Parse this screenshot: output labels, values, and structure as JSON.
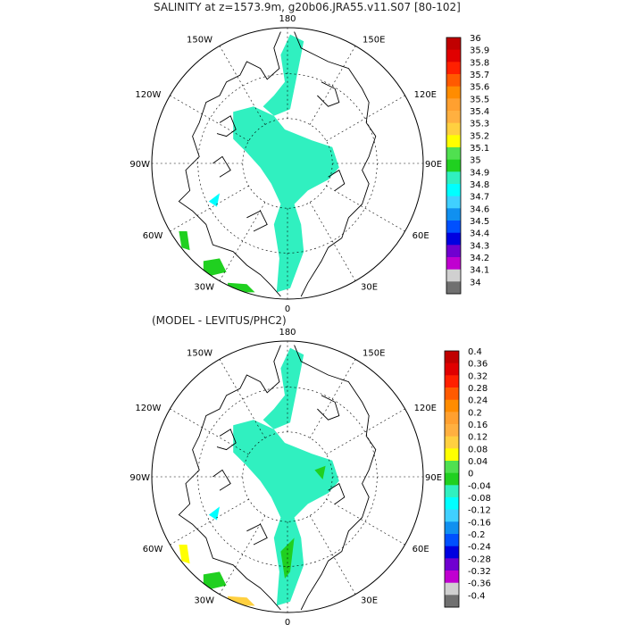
{
  "top_panel": {
    "title": "SALINITY at z=1573.9m, g20b06.JRA55.v11.S07 [80-102]",
    "lon_labels": {
      "l180": "180",
      "l150w": "150W",
      "l150e": "150E",
      "l120w": "120W",
      "l120e": "120E",
      "l90w": "90W",
      "l90e": "90E",
      "l60w": "60W",
      "l60e": "60E",
      "l30w": "30W",
      "l30e": "30E",
      "l0": "0"
    },
    "colorbar": {
      "labels": [
        "36",
        "35.9",
        "35.8",
        "35.7",
        "35.6",
        "35.5",
        "35.4",
        "35.3",
        "35.2",
        "35.1",
        "35",
        "34.9",
        "34.8",
        "34.7",
        "34.6",
        "34.5",
        "34.4",
        "34.3",
        "34.2",
        "34.1",
        "34"
      ],
      "colors": [
        "#c00000",
        "#e00000",
        "#ff2000",
        "#ff5a00",
        "#ff8c00",
        "#ffa030",
        "#ffb040",
        "#ffd040",
        "#ffff00",
        "#50e050",
        "#20d020",
        "#30f0c0",
        "#00ffff",
        "#40d0ff",
        "#1090f0",
        "#0050ff",
        "#0000e0",
        "#7000d0",
        "#c000d0",
        "#d0d0d0",
        "#707070"
      ]
    }
  },
  "bottom_panel": {
    "title": "(MODEL - LEVITUS/PHC2)",
    "lon_labels": {
      "l180": "180",
      "l150w": "150W",
      "l150e": "150E",
      "l120w": "120W",
      "l120e": "120E",
      "l90w": "90W",
      "l90e": "90E",
      "l60w": "60W",
      "l60e": "60E",
      "l30w": "30W",
      "l30e": "30E",
      "l0": "0"
    },
    "colorbar": {
      "labels": [
        "0.4",
        "0.36",
        "0.32",
        "0.28",
        "0.24",
        "0.2",
        "0.16",
        "0.12",
        "0.08",
        "0.04",
        "0",
        "-0.04",
        "-0.08",
        "-0.12",
        "-0.16",
        "-0.2",
        "-0.24",
        "-0.28",
        "-0.32",
        "-0.36",
        "-0.4"
      ],
      "colors": [
        "#c00000",
        "#e00000",
        "#ff2000",
        "#ff5a00",
        "#ff8c00",
        "#ffa030",
        "#ffb040",
        "#ffd040",
        "#ffff00",
        "#50e050",
        "#20d020",
        "#30f0c0",
        "#00ffff",
        "#40d0ff",
        "#1090f0",
        "#0050ff",
        "#0000e0",
        "#7000d0",
        "#c000d0",
        "#d0d0d0",
        "#707070"
      ]
    }
  }
}
